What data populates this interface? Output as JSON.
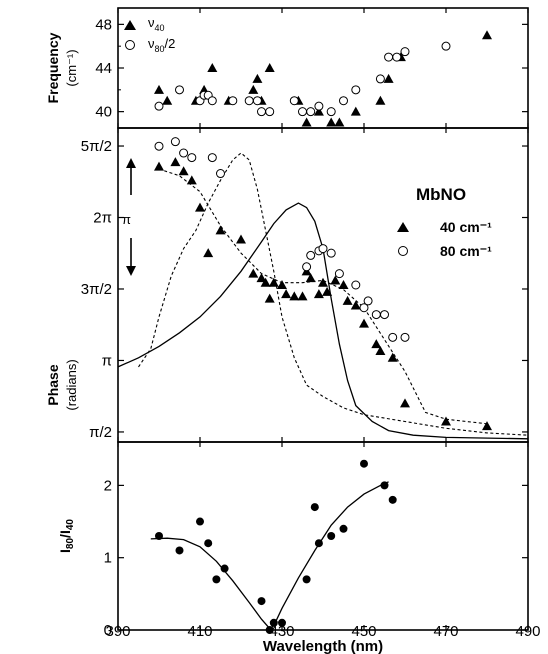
{
  "figure": {
    "x_axis": {
      "label": "Wavelength (nm)",
      "range": [
        390,
        490
      ],
      "ticks": [
        390,
        410,
        430,
        450,
        470,
        490
      ]
    }
  },
  "chart_data": [
    {
      "type": "scatter",
      "panel": "top",
      "ylabel_line1": "Frequency",
      "ylabel_line2": "(cm⁻¹)",
      "ylim": [
        38.5,
        49.5
      ],
      "yticks": [
        40,
        44,
        48
      ],
      "yminor": [
        42,
        46
      ],
      "legend": {
        "position": "top-left",
        "entries": [
          {
            "marker": "triangle",
            "label_main": "ν",
            "label_sub": "40",
            "label_suffix": ""
          },
          {
            "marker": "circle",
            "label_main": "ν",
            "label_sub": "80",
            "label_suffix": "/2"
          }
        ]
      },
      "series": [
        {
          "marker": "triangle",
          "points": [
            [
              400,
              42
            ],
            [
              402,
              41
            ],
            [
              409,
              41
            ],
            [
              411,
              42
            ],
            [
              413,
              44
            ],
            [
              417,
              41
            ],
            [
              423,
              42
            ],
            [
              424,
              43
            ],
            [
              425,
              41
            ],
            [
              427,
              44
            ],
            [
              434,
              41
            ],
            [
              436,
              39
            ],
            [
              439,
              40
            ],
            [
              442,
              39
            ],
            [
              444,
              39
            ],
            [
              448,
              40
            ],
            [
              454,
              41
            ],
            [
              456,
              43
            ],
            [
              459,
              45
            ],
            [
              480,
              47
            ]
          ]
        },
        {
          "marker": "circle",
          "points": [
            [
              400,
              40.5
            ],
            [
              405,
              42
            ],
            [
              410,
              41
            ],
            [
              411,
              41.5
            ],
            [
              412,
              41.5
            ],
            [
              413,
              41
            ],
            [
              418,
              41
            ],
            [
              422,
              41
            ],
            [
              424,
              41
            ],
            [
              425,
              40
            ],
            [
              427,
              40
            ],
            [
              433,
              41
            ],
            [
              435,
              40
            ],
            [
              437,
              40
            ],
            [
              439,
              40.5
            ],
            [
              442,
              40
            ],
            [
              445,
              41
            ],
            [
              448,
              42
            ],
            [
              454,
              43
            ],
            [
              456,
              45
            ],
            [
              458,
              45
            ],
            [
              460,
              45.5
            ],
            [
              470,
              46
            ]
          ]
        }
      ]
    },
    {
      "type": "line",
      "panel": "middle",
      "ylabel_line1": "Phase",
      "ylabel_line2": "(radians)",
      "ylim": [
        1.35,
        8.25
      ],
      "yticks": [
        1.5708,
        3.1416,
        4.7124,
        6.2832,
        7.854
      ],
      "ytick_labels": [
        "π/2",
        "π",
        "3π/2",
        "2π",
        "5π/2"
      ],
      "annotation": "π",
      "legend": {
        "position": "top-right",
        "title": "MbNO",
        "entries": [
          {
            "marker": "triangle",
            "label": "40 cm⁻¹"
          },
          {
            "marker": "circle",
            "label": "80 cm⁻¹"
          }
        ]
      },
      "series": [
        {
          "marker": "triangle",
          "points": [
            [
              400,
              7.4
            ],
            [
              404,
              7.5
            ],
            [
              406,
              7.3
            ],
            [
              408,
              7.1
            ],
            [
              410,
              6.5
            ],
            [
              412,
              5.5
            ],
            [
              415,
              6.0
            ],
            [
              420,
              5.8
            ],
            [
              423,
              5.05
            ],
            [
              425,
              4.95
            ],
            [
              426,
              4.85
            ],
            [
              427,
              4.5
            ],
            [
              428,
              4.85
            ],
            [
              430,
              4.8
            ],
            [
              431,
              4.6
            ],
            [
              433,
              4.55
            ],
            [
              435,
              4.55
            ],
            [
              436,
              5.1
            ],
            [
              437,
              4.95
            ],
            [
              439,
              4.6
            ],
            [
              440,
              4.85
            ],
            [
              441,
              4.65
            ],
            [
              443,
              4.9
            ],
            [
              445,
              4.8
            ],
            [
              446,
              4.45
            ],
            [
              448,
              4.35
            ],
            [
              450,
              3.95
            ],
            [
              453,
              3.5
            ],
            [
              454,
              3.35
            ],
            [
              457,
              3.2
            ],
            [
              460,
              2.2
            ],
            [
              470,
              1.8
            ],
            [
              480,
              1.7
            ]
          ]
        },
        {
          "marker": "circle",
          "points": [
            [
              400,
              7.85
            ],
            [
              404,
              7.95
            ],
            [
              406,
              7.7
            ],
            [
              408,
              7.6
            ],
            [
              413,
              7.6
            ],
            [
              415,
              7.25
            ],
            [
              436,
              5.2
            ],
            [
              437,
              5.45
            ],
            [
              439,
              5.55
            ],
            [
              440,
              5.6
            ],
            [
              442,
              5.5
            ],
            [
              444,
              5.05
            ],
            [
              448,
              4.8
            ],
            [
              450,
              4.3
            ],
            [
              451,
              4.45
            ],
            [
              453,
              4.15
            ],
            [
              455,
              4.15
            ],
            [
              457,
              3.65
            ],
            [
              460,
              3.65
            ]
          ]
        },
        {
          "style": "dashed",
          "points": [
            [
              395,
              3.0
            ],
            [
              398,
              3.4
            ],
            [
              400,
              4.1
            ],
            [
              403,
              5.0
            ],
            [
              406,
              5.6
            ],
            [
              409,
              6.0
            ],
            [
              412,
              6.6
            ],
            [
              415,
              7.1
            ],
            [
              418,
              7.55
            ],
            [
              420,
              7.7
            ],
            [
              422,
              7.55
            ],
            [
              424,
              6.9
            ],
            [
              426,
              6.0
            ],
            [
              428,
              5.1
            ],
            [
              430,
              4.1
            ],
            [
              433,
              3.2
            ],
            [
              436,
              2.6
            ],
            [
              440,
              2.35
            ],
            [
              445,
              2.1
            ],
            [
              450,
              1.95
            ],
            [
              460,
              1.8
            ],
            [
              470,
              1.65
            ],
            [
              480,
              1.55
            ],
            [
              490,
              1.5
            ]
          ]
        },
        {
          "style": "solid",
          "points": [
            [
              390,
              3.0
            ],
            [
              395,
              3.2
            ],
            [
              400,
              3.45
            ],
            [
              405,
              3.75
            ],
            [
              410,
              4.1
            ],
            [
              415,
              4.55
            ],
            [
              420,
              5.1
            ],
            [
              425,
              5.75
            ],
            [
              428,
              6.15
            ],
            [
              431,
              6.45
            ],
            [
              434,
              6.6
            ],
            [
              436,
              6.5
            ],
            [
              438,
              6.2
            ],
            [
              440,
              5.6
            ],
            [
              442,
              4.5
            ],
            [
              444,
              3.5
            ],
            [
              446,
              2.7
            ],
            [
              448,
              2.15
            ],
            [
              452,
              1.8
            ],
            [
              456,
              1.6
            ],
            [
              462,
              1.5
            ],
            [
              470,
              1.45
            ],
            [
              490,
              1.42
            ]
          ]
        },
        {
          "style": "dashed",
          "points": [
            [
              400,
              7.35
            ],
            [
              405,
              7.2
            ],
            [
              410,
              6.85
            ],
            [
              415,
              6.1
            ],
            [
              420,
              5.5
            ],
            [
              425,
              5.05
            ],
            [
              430,
              4.85
            ],
            [
              435,
              4.85
            ],
            [
              440,
              4.9
            ],
            [
              445,
              4.7
            ],
            [
              450,
              4.3
            ],
            [
              455,
              3.6
            ],
            [
              460,
              2.9
            ],
            [
              465,
              2.0
            ],
            [
              470,
              1.85
            ],
            [
              480,
              1.75
            ]
          ]
        }
      ]
    },
    {
      "type": "scatter",
      "panel": "bottom",
      "ylabel_main": "I",
      "ylabel_sub1": "80",
      "ylabel_mid": "/I",
      "ylabel_sub2": "40",
      "ylim": [
        0,
        2.6
      ],
      "yticks": [
        0,
        1,
        2
      ],
      "series": [
        {
          "marker": "dot",
          "points": [
            [
              400,
              1.3
            ],
            [
              405,
              1.1
            ],
            [
              410,
              1.5
            ],
            [
              412,
              1.2
            ],
            [
              414,
              0.7
            ],
            [
              416,
              0.85
            ],
            [
              425,
              0.4
            ],
            [
              427,
              0.0
            ],
            [
              428,
              0.1
            ],
            [
              430,
              0.1
            ],
            [
              436,
              0.7
            ],
            [
              438,
              1.7
            ],
            [
              439,
              1.2
            ],
            [
              442,
              1.3
            ],
            [
              445,
              1.4
            ],
            [
              450,
              2.3
            ],
            [
              455,
              2.0
            ],
            [
              457,
              1.8
            ]
          ]
        },
        {
          "style": "solid",
          "points": [
            [
              398,
              1.26
            ],
            [
              402,
              1.27
            ],
            [
              406,
              1.25
            ],
            [
              410,
              1.15
            ],
            [
              414,
              0.95
            ],
            [
              418,
              0.68
            ],
            [
              422,
              0.38
            ],
            [
              425,
              0.15
            ],
            [
              427,
              0.02
            ],
            [
              428,
              0.06
            ],
            [
              430,
              0.3
            ],
            [
              434,
              0.72
            ],
            [
              438,
              1.1
            ],
            [
              442,
              1.45
            ],
            [
              446,
              1.7
            ],
            [
              450,
              1.88
            ],
            [
              454,
              2.0
            ],
            [
              456,
              2.05
            ]
          ]
        }
      ]
    }
  ]
}
